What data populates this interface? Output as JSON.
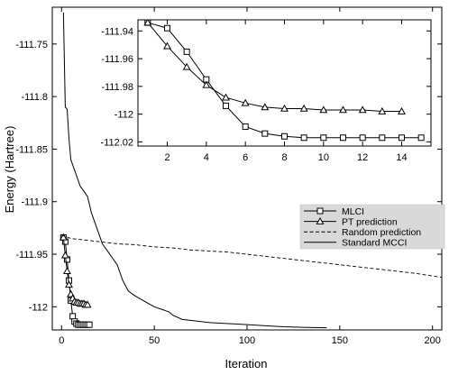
{
  "chart_data": [
    {
      "type": "line",
      "xlabel": "Iteration",
      "ylabel": "Energy (Hartree)",
      "xlim": [
        -5,
        205
      ],
      "ylim": [
        -112.022,
        -111.715
      ],
      "x_ticks": [
        0,
        50,
        100,
        150,
        200
      ],
      "y_ticks": [
        -111.75,
        -111.8,
        -111.85,
        -111.9,
        -111.95,
        -112
      ],
      "grid": false,
      "legend_position": "right",
      "series": [
        {
          "name": "MLCI",
          "style": "line-square-marker",
          "x": [
            1,
            2,
            3,
            4,
            5,
            6,
            7,
            8,
            9,
            10,
            11,
            12,
            13,
            14,
            15
          ],
          "y": [
            -111.934,
            -111.938,
            -111.955,
            -111.975,
            -111.994,
            -112.009,
            -112.014,
            -112.016,
            -112.017,
            -112.017,
            -112.017,
            -112.017,
            -112.017,
            -112.017,
            -112.017
          ]
        },
        {
          "name": "PT prediction",
          "style": "line-triangle-marker",
          "x": [
            1,
            2,
            3,
            4,
            5,
            6,
            7,
            8,
            9,
            10,
            11,
            12,
            13,
            14
          ],
          "y": [
            -111.934,
            -111.951,
            -111.966,
            -111.979,
            -111.988,
            -111.992,
            -111.995,
            -111.996,
            -111.996,
            -111.997,
            -111.997,
            -111.997,
            -111.998,
            -111.998
          ]
        },
        {
          "name": "Random prediction",
          "style": "dashed",
          "x": [
            0,
            2,
            5,
            10,
            20,
            30,
            40,
            50,
            60,
            70,
            80,
            90,
            100,
            110,
            120,
            130,
            140,
            150,
            160,
            170,
            180,
            190,
            205
          ],
          "y": [
            -111.932,
            -111.933,
            -111.935,
            -111.936,
            -111.938,
            -111.94,
            -111.941,
            -111.943,
            -111.944,
            -111.946,
            -111.947,
            -111.948,
            -111.95,
            -111.952,
            -111.954,
            -111.956,
            -111.958,
            -111.96,
            -111.962,
            -111.964,
            -111.966,
            -111.968,
            -111.972
          ]
        },
        {
          "name": "Standard MCCI",
          "style": "solid",
          "x": [
            1,
            2,
            3,
            4,
            5,
            6,
            7,
            8,
            9,
            10,
            12,
            14,
            16,
            18,
            20,
            22,
            24,
            26,
            28,
            30,
            33,
            36,
            40,
            45,
            50,
            55,
            58,
            60,
            65,
            70,
            80,
            90,
            100,
            110,
            120,
            130,
            143
          ],
          "y": [
            -111.72,
            -111.81,
            -111.812,
            -111.84,
            -111.86,
            -111.865,
            -111.87,
            -111.875,
            -111.88,
            -111.885,
            -111.89,
            -111.895,
            -111.91,
            -111.92,
            -111.93,
            -111.94,
            -111.945,
            -111.95,
            -111.955,
            -111.96,
            -111.975,
            -111.985,
            -111.99,
            -111.995,
            -112.0,
            -112.003,
            -112.005,
            -112.008,
            -112.012,
            -112.013,
            -112.015,
            -112.016,
            -112.017,
            -112.018,
            -112.019,
            -112.0195,
            -112.02
          ]
        }
      ]
    },
    {
      "type": "line",
      "role": "inset",
      "xlim": [
        0.5,
        15.5
      ],
      "ylim": [
        -112.023,
        -111.932
      ],
      "x_ticks": [
        2,
        4,
        6,
        8,
        10,
        12,
        14
      ],
      "y_ticks": [
        -111.94,
        -111.96,
        -111.98,
        -112,
        -112.02
      ],
      "grid": false,
      "series": [
        {
          "name": "MLCI",
          "style": "line-square-marker",
          "x": [
            1,
            2,
            3,
            4,
            5,
            6,
            7,
            8,
            9,
            10,
            11,
            12,
            13,
            14,
            15
          ],
          "y": [
            -111.934,
            -111.938,
            -111.955,
            -111.975,
            -111.994,
            -112.009,
            -112.014,
            -112.016,
            -112.017,
            -112.017,
            -112.017,
            -112.017,
            -112.017,
            -112.017,
            -112.017
          ]
        },
        {
          "name": "PT prediction",
          "style": "line-triangle-marker",
          "x": [
            1,
            2,
            3,
            4,
            5,
            6,
            7,
            8,
            9,
            10,
            11,
            12,
            13,
            14
          ],
          "y": [
            -111.934,
            -111.951,
            -111.966,
            -111.979,
            -111.988,
            -111.992,
            -111.995,
            -111.996,
            -111.996,
            -111.997,
            -111.997,
            -111.997,
            -111.998,
            -111.998
          ]
        }
      ]
    }
  ]
}
